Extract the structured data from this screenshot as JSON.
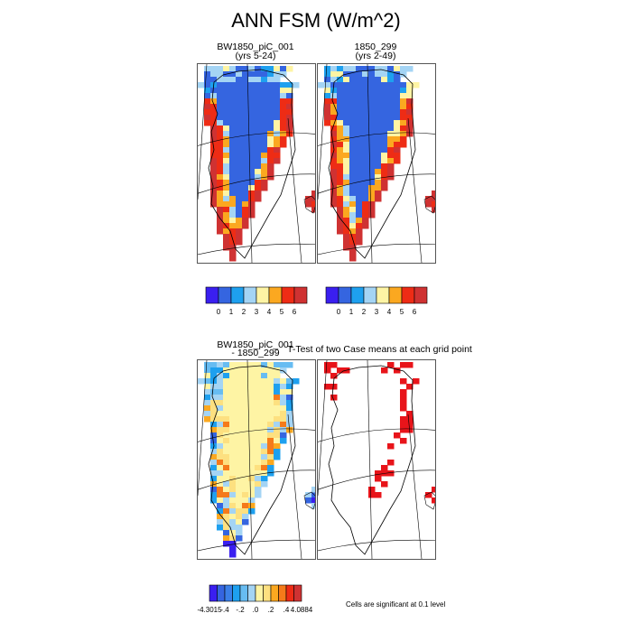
{
  "figure": {
    "title": "ANN FSM (W/m^2)"
  },
  "chart_data": [
    {
      "type": "heatmap",
      "title": "BW1850_piC_001",
      "subtitle": "(yrs 5-24)",
      "colorbar_ticks": [
        "0",
        "1",
        "2",
        "3",
        "4",
        "5",
        "6"
      ],
      "colorbar_colors": [
        "#3a1ff0",
        "#3565e0",
        "#1ea0ef",
        "#a4d4f4",
        "#fef4a4",
        "#fba820",
        "#ee2c15",
        "#cf3232"
      ]
    },
    {
      "type": "heatmap",
      "title": "1850_299",
      "subtitle": "(yrs 2-49)",
      "colorbar_ticks": [
        "0",
        "1",
        "2",
        "3",
        "4",
        "5",
        "6"
      ],
      "colorbar_colors": [
        "#3a1ff0",
        "#3565e0",
        "#1ea0ef",
        "#a4d4f4",
        "#fef4a4",
        "#fba820",
        "#ee2c15",
        "#cf3232"
      ]
    },
    {
      "type": "heatmap",
      "title": "BW1850_piC_001",
      "subtitle": "- 1850_299",
      "colorbar_ticks": [
        "-4.3015",
        "-.4",
        "-.2",
        ".0",
        ".2",
        ".4",
        "4.0884"
      ],
      "colorbar_colors": [
        "#3a1ff0",
        "#3565e0",
        "#3a7fe8",
        "#1ea0ef",
        "#67bcf2",
        "#a4d4f4",
        "#fef4a4",
        "#fde080",
        "#fba820",
        "#f57a1a",
        "#ee2c15",
        "#cf3232"
      ]
    },
    {
      "type": "heatmap",
      "title": "T-Test of two Case means at each grid point",
      "note": "Cells are significant at 0.1 level",
      "colors": {
        "significant": "#e8141a"
      }
    }
  ]
}
